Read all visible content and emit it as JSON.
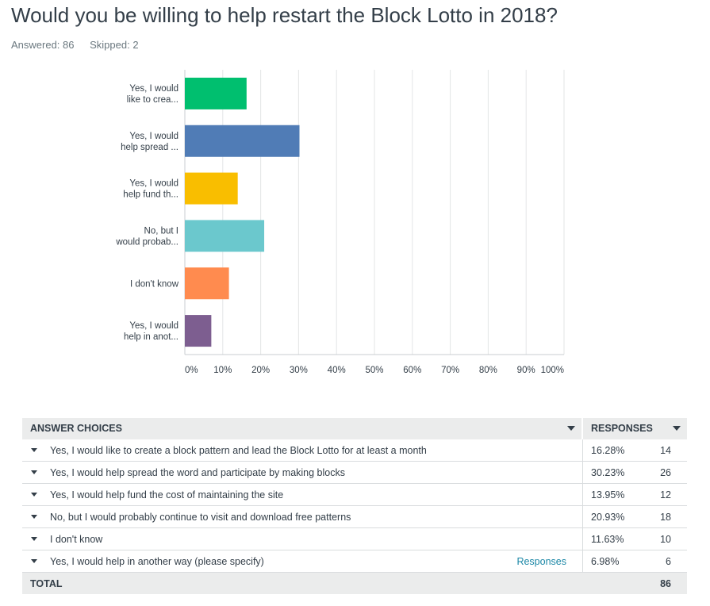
{
  "question": {
    "title": "Would you be willing to help restart the Block Lotto in 2018?",
    "answered": "Answered: 86",
    "skipped": "Skipped: 2"
  },
  "colors": {
    "series": [
      "#00bf6f",
      "#507cb6",
      "#f9be00",
      "#6bc8cd",
      "#ff8b4f",
      "#7d5e90"
    ],
    "gridline": "#e3e5e6",
    "axis": "#c9cdd0",
    "link": "#1b87a6"
  },
  "chart_data": {
    "type": "bar",
    "orientation": "horizontal",
    "categories": [
      [
        "Yes, I would",
        "like to crea..."
      ],
      [
        "Yes, I would",
        "help spread ..."
      ],
      [
        "Yes, I would",
        "help fund th..."
      ],
      [
        "No, but I",
        "would probab..."
      ],
      [
        "I don't know"
      ],
      [
        "Yes, I would",
        "help in anot..."
      ]
    ],
    "values": [
      16.28,
      30.23,
      13.95,
      20.93,
      11.63,
      6.98
    ],
    "xlim": [
      0,
      100
    ],
    "x_ticks": [
      "0%",
      "10%",
      "20%",
      "30%",
      "40%",
      "50%",
      "60%",
      "70%",
      "80%",
      "90%",
      "100%"
    ],
    "grid": true,
    "legend": "none",
    "title": "Would you be willing to help restart the Block Lotto in 2018?"
  },
  "table": {
    "header_answer": "ANSWER CHOICES",
    "header_responses": "RESPONSES",
    "rows": [
      {
        "answer": "Yes, I would like to create a block pattern and lead the Block Lotto for at least a month",
        "pct": "16.28%",
        "count": "14",
        "link": ""
      },
      {
        "answer": "Yes, I would help spread the word and participate by making blocks",
        "pct": "30.23%",
        "count": "26",
        "link": ""
      },
      {
        "answer": "Yes, I would help fund the cost of maintaining the site",
        "pct": "13.95%",
        "count": "12",
        "link": ""
      },
      {
        "answer": "No, but I would probably continue to visit and download free patterns",
        "pct": "20.93%",
        "count": "18",
        "link": ""
      },
      {
        "answer": "I don't know",
        "pct": "11.63%",
        "count": "10",
        "link": ""
      },
      {
        "answer": "Yes, I would help in another way (please specify)",
        "pct": "6.98%",
        "count": "6",
        "link": "Responses"
      }
    ],
    "total_label": "TOTAL",
    "total_count": "86"
  }
}
